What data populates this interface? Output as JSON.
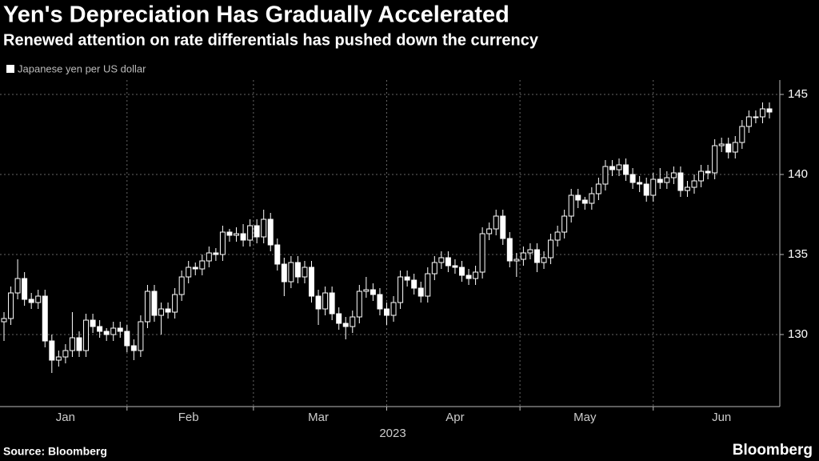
{
  "chart_data": {
    "type": "candlestick",
    "title": "Yen's Depreciation Has Gradually Accelerated",
    "subtitle": "Renewed attention on rate differentials has pushed down the currency",
    "series_name": "Japanese yen per US dollar",
    "x_label": "2023",
    "source": "Source: Bloomberg",
    "brand": "Bloomberg",
    "color": "#ffffff",
    "grid": true,
    "categories": [
      null,
      null,
      null,
      null,
      null,
      null,
      null,
      null,
      null,
      "Jan",
      null,
      null,
      null,
      null,
      null,
      null,
      null,
      null,
      null,
      null,
      null,
      null,
      null,
      null,
      null,
      null,
      null,
      "Feb",
      null,
      null,
      null,
      null,
      null,
      null,
      null,
      null,
      null,
      null,
      null,
      null,
      null,
      null,
      null,
      null,
      null,
      null,
      "Mar",
      null,
      null,
      null,
      null,
      null,
      null,
      null,
      null,
      null,
      null,
      null,
      null,
      null,
      null,
      null,
      null,
      null,
      null,
      null,
      "Apr",
      null,
      null,
      null,
      null,
      null,
      null,
      null,
      null,
      null,
      null,
      null,
      null,
      null,
      null,
      null,
      null,
      null,
      null,
      "May",
      null,
      null,
      null,
      null,
      null,
      null,
      null,
      null,
      null,
      null,
      null,
      null,
      null,
      null,
      null,
      null,
      null,
      null,
      null,
      "Jun",
      null,
      null,
      null,
      null,
      null,
      null,
      null
    ],
    "open": [
      130.8,
      131.0,
      132.6,
      133.5,
      132.2,
      132.0,
      132.4,
      129.6,
      128.4,
      128.6,
      129.0,
      129.8,
      129.0,
      130.9,
      130.5,
      130.2,
      130.0,
      130.4,
      130.2,
      129.3,
      129.0,
      130.8,
      132.7,
      131.2,
      131.6,
      131.4,
      132.5,
      133.6,
      134.2,
      134.1,
      134.6,
      135.1,
      135.0,
      136.4,
      136.2,
      136.3,
      135.9,
      136.8,
      136.1,
      137.2,
      135.6,
      134.4,
      133.3,
      134.5,
      133.6,
      134.2,
      132.4,
      131.6,
      132.6,
      131.3,
      130.7,
      130.5,
      131.1,
      132.7,
      132.8,
      132.5,
      131.6,
      131.2,
      132.0,
      133.6,
      133.4,
      132.9,
      132.4,
      133.8,
      134.5,
      134.8,
      134.3,
      134.2,
      133.7,
      133.5,
      133.9,
      136.3,
      136.6,
      137.4,
      136.0,
      134.6,
      134.7,
      135.1,
      135.3,
      134.5,
      134.8,
      135.9,
      136.4,
      137.4,
      138.7,
      138.4,
      138.2,
      138.8,
      139.4,
      140.5,
      140.3,
      140.6,
      140.0,
      139.5,
      139.4,
      138.7,
      139.7,
      139.5,
      139.8,
      140.1,
      139.0,
      139.2,
      139.6,
      140.2,
      140.1,
      141.8,
      141.9,
      141.4,
      142.0,
      143.0,
      143.6,
      143.6,
      144.1
    ],
    "high": [
      131.4,
      133.0,
      134.7,
      133.9,
      132.6,
      132.8,
      132.8,
      130.0,
      129.0,
      129.4,
      131.4,
      130.2,
      131.3,
      131.3,
      130.9,
      130.4,
      130.8,
      130.8,
      130.6,
      129.7,
      131.2,
      133.1,
      133.1,
      132.0,
      132.0,
      132.9,
      134.0,
      134.6,
      134.5,
      135.0,
      135.5,
      135.4,
      136.8,
      136.6,
      136.7,
      136.9,
      137.2,
      137.2,
      137.8,
      137.6,
      136.0,
      134.8,
      134.9,
      134.9,
      134.6,
      134.6,
      132.8,
      133.0,
      133.0,
      131.7,
      131.1,
      131.5,
      133.1,
      133.6,
      133.2,
      132.9,
      132.0,
      132.4,
      134.0,
      134.0,
      133.8,
      133.3,
      134.2,
      134.9,
      135.2,
      135.2,
      134.7,
      134.6,
      134.1,
      134.3,
      136.7,
      137.0,
      137.8,
      137.8,
      136.4,
      135.1,
      135.5,
      135.7,
      135.7,
      135.2,
      136.3,
      136.8,
      137.8,
      139.1,
      139.1,
      138.6,
      139.2,
      139.8,
      140.9,
      140.9,
      141.0,
      141.0,
      140.4,
      139.9,
      139.8,
      140.1,
      140.4,
      140.2,
      140.5,
      140.5,
      139.6,
      140.0,
      140.6,
      140.6,
      142.2,
      142.3,
      142.3,
      142.4,
      143.4,
      144.0,
      144.0,
      144.5,
      144.5
    ],
    "low": [
      129.6,
      130.6,
      132.2,
      131.8,
      131.6,
      131.6,
      129.2,
      127.6,
      128.0,
      128.2,
      128.6,
      128.6,
      128.6,
      130.1,
      129.8,
      129.6,
      129.6,
      129.8,
      128.9,
      128.4,
      128.6,
      130.4,
      130.8,
      130.0,
      131.0,
      131.0,
      132.1,
      133.2,
      133.7,
      133.7,
      134.2,
      134.6,
      134.6,
      135.8,
      135.8,
      135.5,
      135.5,
      135.7,
      135.7,
      135.2,
      134.0,
      132.4,
      132.9,
      133.2,
      133.2,
      132.0,
      130.6,
      131.2,
      130.9,
      130.3,
      129.7,
      130.1,
      130.7,
      132.3,
      132.1,
      131.2,
      130.6,
      130.8,
      131.6,
      133.0,
      132.5,
      132.0,
      132.0,
      133.4,
      134.1,
      133.9,
      133.8,
      133.3,
      133.1,
      133.1,
      133.5,
      135.9,
      136.2,
      135.6,
      134.2,
      133.6,
      134.3,
      134.7,
      133.9,
      134.1,
      134.4,
      135.5,
      136.0,
      137.0,
      137.9,
      137.8,
      137.8,
      138.4,
      139.0,
      139.9,
      139.9,
      139.6,
      139.1,
      138.9,
      138.3,
      138.3,
      139.1,
      139.1,
      139.4,
      138.6,
      138.6,
      138.8,
      139.2,
      139.7,
      139.7,
      141.4,
      141.0,
      141.0,
      141.6,
      142.6,
      143.2,
      143.2,
      143.5
    ],
    "close": [
      131.0,
      132.6,
      133.5,
      132.2,
      132.0,
      132.4,
      129.6,
      128.4,
      128.6,
      129.0,
      129.8,
      129.0,
      130.9,
      130.5,
      130.2,
      130.0,
      130.4,
      130.2,
      129.3,
      129.0,
      130.8,
      132.7,
      131.2,
      131.6,
      131.4,
      132.5,
      133.6,
      134.2,
      134.1,
      134.6,
      135.1,
      135.0,
      136.4,
      136.2,
      136.3,
      135.9,
      136.8,
      136.1,
      137.2,
      135.6,
      134.4,
      133.3,
      134.5,
      133.6,
      134.2,
      132.4,
      131.6,
      132.6,
      131.3,
      130.7,
      130.5,
      131.1,
      132.7,
      132.8,
      132.5,
      131.6,
      131.2,
      132.0,
      133.6,
      133.4,
      132.9,
      132.4,
      133.8,
      134.5,
      134.8,
      134.3,
      134.2,
      133.7,
      133.5,
      133.9,
      136.3,
      136.6,
      137.4,
      136.0,
      134.6,
      134.7,
      135.1,
      135.3,
      134.5,
      134.8,
      135.9,
      136.4,
      137.4,
      138.7,
      138.4,
      138.2,
      138.8,
      139.4,
      140.5,
      140.3,
      140.6,
      140.0,
      139.5,
      139.4,
      138.7,
      139.7,
      139.5,
      139.8,
      140.1,
      139.0,
      139.2,
      139.6,
      140.2,
      140.1,
      141.8,
      141.9,
      141.4,
      142.0,
      143.0,
      143.6,
      143.6,
      144.1,
      143.9
    ],
    "ylim": [
      125.5,
      145.9
    ],
    "yticks": [
      130,
      135,
      140,
      145
    ]
  }
}
